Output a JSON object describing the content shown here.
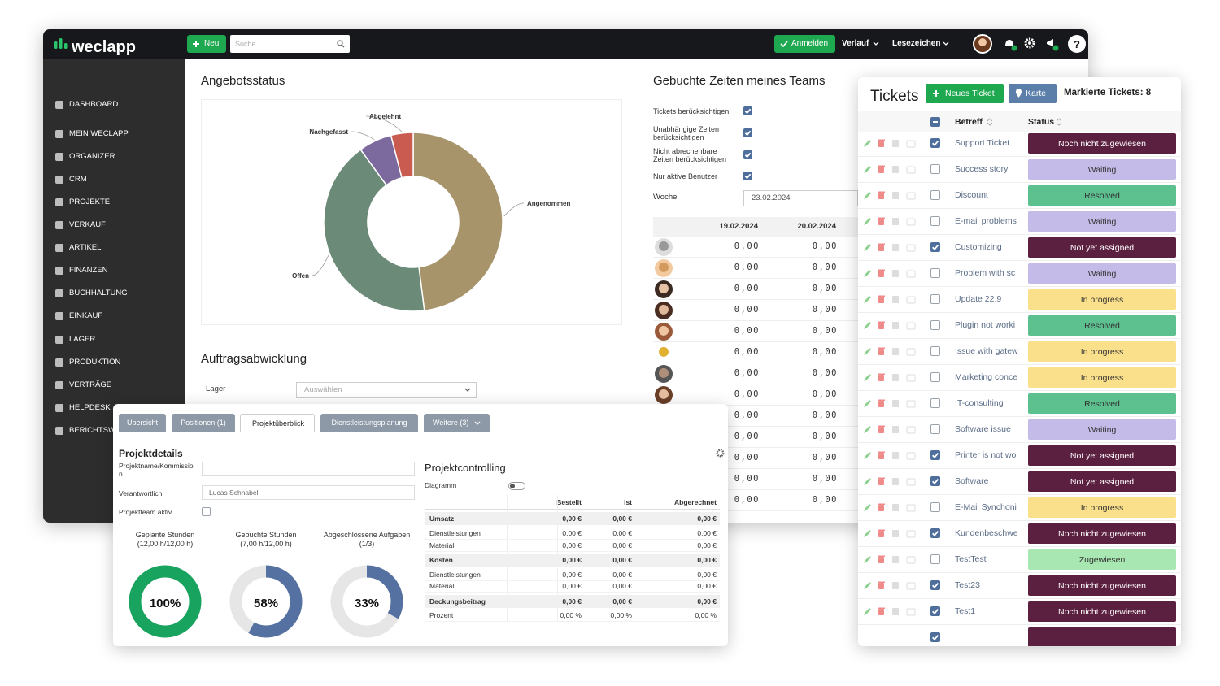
{
  "app": {
    "logo": "weclapp",
    "new_button": "Neu",
    "search_placeholder": "Suche",
    "login_button": "Anmelden",
    "history": "Verlauf",
    "bookmarks": "Lesezeichen",
    "help": "?"
  },
  "sidebar": [
    "DASHBOARD",
    "MEIN WECLAPP",
    "ORGANIZER",
    "CRM",
    "PROJEKTE",
    "VERKAUF",
    "ARTIKEL",
    "FINANZEN",
    "BUCHHALTUNG",
    "EINKAUF",
    "LAGER",
    "PRODUKTION",
    "VERTRÄGE",
    "HELPDESK",
    "BERICHTSWESEN"
  ],
  "angebotsstatus": {
    "title": "Angebotsstatus",
    "chart": {
      "type": "pie",
      "categories": [
        "Angenommen",
        "Offen",
        "Nachgefasst",
        "Abgelehnt"
      ],
      "values": [
        48,
        42,
        6,
        4
      ],
      "colors": [
        "#a8946a",
        "#6b8b78",
        "#7c6a9f",
        "#c95b50"
      ]
    }
  },
  "auftragsabwicklung": {
    "title": "Auftragsabwicklung",
    "lager_label": "Lager",
    "lager_placeholder": "Auswählen"
  },
  "team_times": {
    "title": "Gebuchte Zeiten meines Teams",
    "options": [
      {
        "label": "Tickets berücksichtigen",
        "checked": true
      },
      {
        "label": "Unabhängige Zeiten berücksichtigen",
        "checked": true
      },
      {
        "label": "Nicht abrechenbare Zeiten berücksichtigen",
        "checked": true
      },
      {
        "label": "Nur aktive Benutzer",
        "checked": true
      }
    ],
    "week_label": "Woche",
    "week_value": "23.02.2024",
    "columns": [
      "19.02.2024",
      "20.02.2024"
    ],
    "rows": [
      [
        "0,00",
        "0,00"
      ],
      [
        "0,00",
        "0,00"
      ],
      [
        "0,00",
        "0,00"
      ],
      [
        "0,00",
        "0,00"
      ],
      [
        "0,00",
        "0,00"
      ],
      [
        "0,00",
        "0,00"
      ],
      [
        "0,00",
        "0,00"
      ],
      [
        "0,00",
        "0,00"
      ],
      [
        "0,00",
        "0,00"
      ],
      [
        "0,00",
        "0,00"
      ],
      [
        "0,00",
        "0,00"
      ],
      [
        "0,00",
        "0,00"
      ],
      [
        "0,00",
        "0,00"
      ]
    ]
  },
  "tickets": {
    "title": "Tickets",
    "new_ticket": "Neues Ticket",
    "map": "Karte",
    "marked": "Markierte Tickets: 8",
    "columns": [
      "Betreff",
      "Status"
    ],
    "rows": [
      {
        "subject": "Support Ticket",
        "status": "Noch nicht zugewiesen",
        "checked": true,
        "color": "#5b1f3f"
      },
      {
        "subject": "Success story",
        "status": "Waiting",
        "checked": false,
        "color": "#c4bbe8"
      },
      {
        "subject": "Discount",
        "status": "Resolved",
        "checked": false,
        "color": "#5cc08f"
      },
      {
        "subject": "E-mail problems",
        "status": "Waiting",
        "checked": false,
        "color": "#c4bbe8"
      },
      {
        "subject": "Customizing",
        "status": "Not yet assigned",
        "checked": true,
        "color": "#5b1f3f"
      },
      {
        "subject": "Problem with sc",
        "status": "Waiting",
        "checked": false,
        "color": "#c4bbe8"
      },
      {
        "subject": "Update 22.9",
        "status": "In progress",
        "checked": false,
        "color": "#fbe08c"
      },
      {
        "subject": "Plugin not worki",
        "status": "Resolved",
        "checked": false,
        "color": "#5cc08f"
      },
      {
        "subject": "Issue with gatew",
        "status": "In progress",
        "checked": false,
        "color": "#fbe08c"
      },
      {
        "subject": "Marketing conce",
        "status": "In progress",
        "checked": false,
        "color": "#fbe08c"
      },
      {
        "subject": "IT-consulting",
        "status": "Resolved",
        "checked": false,
        "color": "#5cc08f"
      },
      {
        "subject": "Software issue",
        "status": "Waiting",
        "checked": false,
        "color": "#c4bbe8"
      },
      {
        "subject": "Printer is not wo",
        "status": "Not yet assigned",
        "checked": true,
        "color": "#5b1f3f"
      },
      {
        "subject": "Software",
        "status": "Not yet assigned",
        "checked": true,
        "color": "#5b1f3f"
      },
      {
        "subject": "E-Mail Synchoni",
        "status": "In progress",
        "checked": false,
        "color": "#fbe08c"
      },
      {
        "subject": "Kundenbeschwe",
        "status": "Noch nicht zugewiesen",
        "checked": true,
        "color": "#5b1f3f"
      },
      {
        "subject": "TestTest",
        "status": "Zugewiesen",
        "checked": false,
        "color": "#a9e7b2"
      },
      {
        "subject": "Test23",
        "status": "Noch nicht zugewiesen",
        "checked": true,
        "color": "#5b1f3f"
      },
      {
        "subject": "Test1",
        "status": "Noch nicht zugewiesen",
        "checked": true,
        "color": "#5b1f3f"
      }
    ]
  },
  "project": {
    "tabs": [
      "Übersicht",
      "Positionen (1)",
      "Projektüberblick",
      "Dienstleistungsplanung",
      "Weitere (3)"
    ],
    "active_tab": 2,
    "details_title": "Projektdetails",
    "fields": [
      {
        "label": "Projektname/Kommission"
      },
      {
        "label": "Verantwortlich",
        "value": "Lucas Schnabel"
      }
    ],
    "team_active_label": "Projektteam aktiv",
    "progress": [
      {
        "title": "Geplante Stunden",
        "detail": "(12,00 h/12,00 h)",
        "value": 100,
        "value_label": "100%",
        "color": "#18a35f"
      },
      {
        "title": "Gebuchte Stunden",
        "detail": "(7,00 h/12,00 h)",
        "value": 58,
        "value_label": "58%",
        "color": "#5571a1"
      },
      {
        "title": "Abgeschlossene Aufgaben",
        "detail": "(1/3)",
        "value": 33,
        "value_label": "33%",
        "color": "#5571a1"
      }
    ],
    "controlling": {
      "title": "Projektcontrolling",
      "diagram_label": "Diagramm",
      "columns": [
        "Bestellt",
        "Ist",
        "Abgerechnet"
      ],
      "rows": [
        {
          "label": "Umsatz",
          "bold": true,
          "values": [
            "0,00 €",
            "0,00 €",
            "0,00 €"
          ]
        },
        {
          "label": "Dienstleistungen",
          "bold": false,
          "values": [
            "0,00 €",
            "0,00 €",
            "0,00 €"
          ]
        },
        {
          "label": "Material",
          "bold": false,
          "values": [
            "0,00 €",
            "0,00 €",
            "0,00 €"
          ]
        },
        {
          "label": "Kosten",
          "bold": true,
          "values": [
            "0,00 €",
            "0,00 €",
            "0,00 €"
          ]
        },
        {
          "label": "Dienstleistungen",
          "bold": false,
          "values": [
            "0,00 €",
            "0,00 €",
            "0,00 €"
          ]
        },
        {
          "label": "Material",
          "bold": false,
          "values": [
            "0,00 €",
            "0,00 €",
            "0,00 €"
          ]
        },
        {
          "label": "Deckungsbeitrag",
          "bold": true,
          "values": [
            "0,00 €",
            "0,00 €",
            "0,00 €"
          ]
        },
        {
          "label": "Prozent",
          "bold": false,
          "values": [
            "0,00 %",
            "0,00 %",
            "0,00 %"
          ]
        }
      ]
    }
  }
}
